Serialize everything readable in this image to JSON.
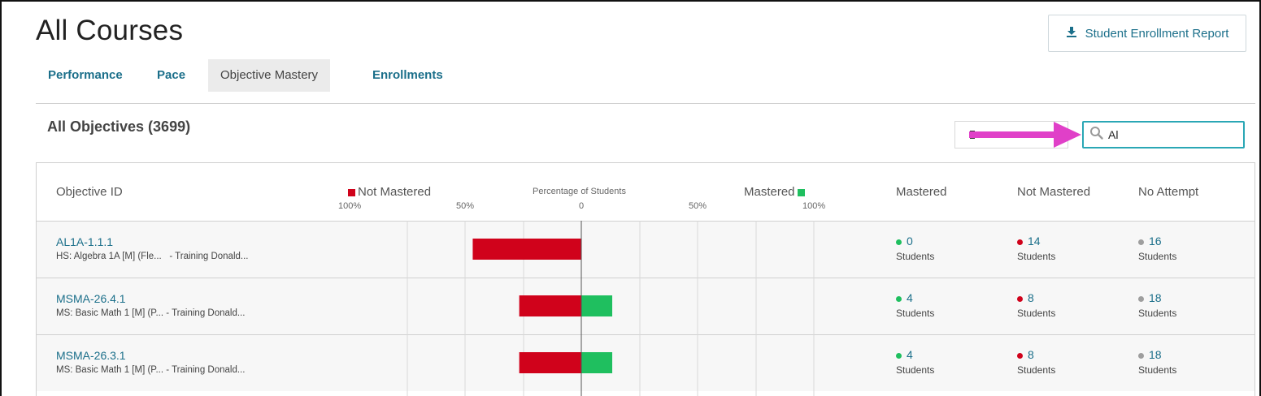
{
  "page": {
    "title": "All Courses"
  },
  "report_button": {
    "label": "Student Enrollment Report",
    "icon": "download-icon"
  },
  "tabs": [
    {
      "label": "Performance",
      "active": false
    },
    {
      "label": "Pace",
      "active": false
    },
    {
      "label": "Objective Mastery",
      "active": true
    },
    {
      "label": "Enrollments",
      "active": false
    }
  ],
  "section": {
    "title": "All Objectives (3699)"
  },
  "search": {
    "value": "Al",
    "icon": "search-icon"
  },
  "table": {
    "headers": {
      "objective_id": "Objective ID",
      "not_mastered_legend": "Not Mastered",
      "percentage_title": "Percentage of Students",
      "mastered_legend": "Mastered",
      "mastered": "Mastered",
      "not_mastered": "Not Mastered",
      "no_attempt": "No Attempt"
    },
    "ticks": [
      "100%",
      "50%",
      "0",
      "50%",
      "100%"
    ],
    "students_label": "Students",
    "rows": [
      {
        "id": "AL1A-1.1.1",
        "desc": "HS: Algebra 1A [M] (Fle...   - Training Donald...",
        "mastered": 0,
        "not_mastered": 14,
        "no_attempt": 16
      },
      {
        "id": "MSMA-26.4.1",
        "desc": "MS: Basic Math 1 [M] (P... - Training Donald...",
        "mastered": 4,
        "not_mastered": 8,
        "no_attempt": 18
      },
      {
        "id": "MSMA-26.3.1",
        "desc": "MS: Basic Math 1 [M] (P... - Training Donald...",
        "mastered": 4,
        "not_mastered": 8,
        "no_attempt": 18
      }
    ]
  },
  "colors": {
    "accent": "#1b6f8a",
    "mastered": "#1fbf5f",
    "not_mastered": "#d0021b",
    "no_attempt": "#9e9e9e",
    "search_border": "#2aa7b5",
    "arrow": "#e040c8"
  },
  "chart_data": {
    "type": "bar",
    "title": "Percentage of Students",
    "xlim": [
      -100,
      100
    ],
    "categories": [
      "AL1A-1.1.1",
      "MSMA-26.4.1",
      "MSMA-26.3.1"
    ],
    "series": [
      {
        "name": "Not Mastered",
        "values": [
          -46.7,
          -26.7,
          -26.7
        ]
      },
      {
        "name": "Mastered",
        "values": [
          0,
          13.3,
          13.3
        ]
      }
    ]
  }
}
